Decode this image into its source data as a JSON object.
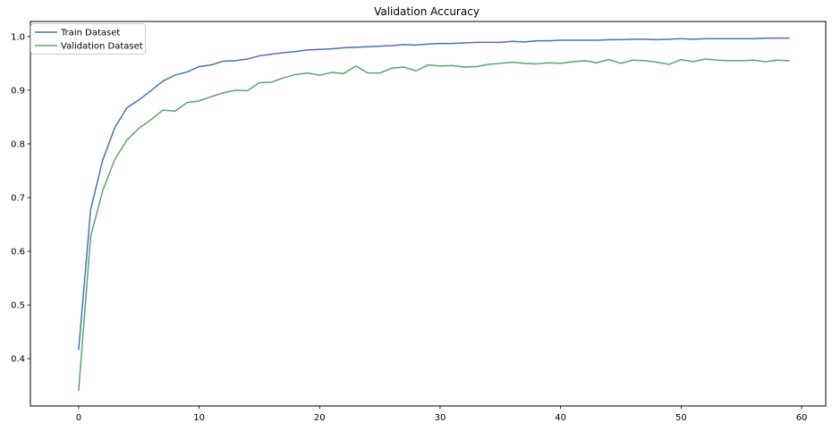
{
  "chart_data": {
    "type": "line",
    "title": "Validation Accuracy",
    "xlabel": "",
    "ylabel": "",
    "xlim": [
      -4.0,
      62.0
    ],
    "ylim": [
      0.312,
      1.028
    ],
    "xticks": [
      0,
      10,
      20,
      30,
      40,
      50,
      60
    ],
    "yticks": [
      0.4,
      0.5,
      0.6,
      0.7,
      0.8,
      0.9,
      1.0
    ],
    "ytick_labels": [
      "0.4",
      "0.5",
      "0.6",
      "0.7",
      "0.8",
      "0.9",
      "1.0"
    ],
    "grid": false,
    "legend": "top-left",
    "x": [
      0,
      1,
      2,
      3,
      4,
      5,
      6,
      7,
      8,
      9,
      10,
      11,
      12,
      13,
      14,
      15,
      16,
      17,
      18,
      19,
      20,
      21,
      22,
      23,
      24,
      25,
      26,
      27,
      28,
      29,
      30,
      31,
      32,
      33,
      34,
      35,
      36,
      37,
      38,
      39,
      40,
      41,
      42,
      43,
      44,
      45,
      46,
      47,
      48,
      49,
      50,
      51,
      52,
      53,
      54,
      55,
      56,
      57,
      58,
      59
    ],
    "series": [
      {
        "name": "Train Dataset",
        "color": "#4c72b0",
        "values": [
          0.416,
          0.678,
          0.77,
          0.83,
          0.867,
          0.882,
          0.899,
          0.917,
          0.928,
          0.934,
          0.944,
          0.947,
          0.954,
          0.955,
          0.958,
          0.964,
          0.967,
          0.97,
          0.972,
          0.975,
          0.976,
          0.977,
          0.979,
          0.98,
          0.981,
          0.982,
          0.983,
          0.985,
          0.984,
          0.986,
          0.987,
          0.987,
          0.988,
          0.989,
          0.989,
          0.989,
          0.991,
          0.99,
          0.992,
          0.992,
          0.993,
          0.993,
          0.993,
          0.993,
          0.994,
          0.994,
          0.995,
          0.995,
          0.994,
          0.995,
          0.996,
          0.995,
          0.996,
          0.996,
          0.996,
          0.996,
          0.996,
          0.997,
          0.997,
          0.997
        ]
      },
      {
        "name": "Validation Dataset",
        "color": "#55a868",
        "values": [
          0.34,
          0.628,
          0.713,
          0.771,
          0.807,
          0.829,
          0.845,
          0.863,
          0.861,
          0.877,
          0.88,
          0.888,
          0.895,
          0.9,
          0.899,
          0.914,
          0.915,
          0.923,
          0.929,
          0.932,
          0.928,
          0.933,
          0.931,
          0.945,
          0.932,
          0.932,
          0.941,
          0.943,
          0.936,
          0.947,
          0.945,
          0.946,
          0.943,
          0.944,
          0.948,
          0.95,
          0.952,
          0.95,
          0.949,
          0.951,
          0.95,
          0.953,
          0.955,
          0.951,
          0.957,
          0.95,
          0.956,
          0.955,
          0.952,
          0.948,
          0.957,
          0.953,
          0.958,
          0.956,
          0.955,
          0.955,
          0.956,
          0.953,
          0.956,
          0.955
        ]
      }
    ]
  }
}
